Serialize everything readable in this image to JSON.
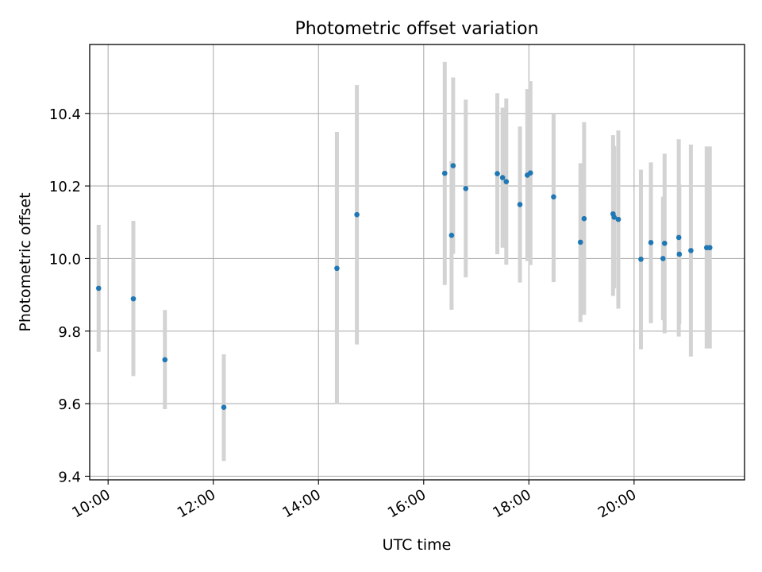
{
  "chart_data": {
    "type": "scatter",
    "title": "Photometric offset variation",
    "xlabel": "UTC time",
    "ylabel": "Photometric offset",
    "xlim": [
      9.65,
      22.1
    ],
    "ylim": [
      9.39,
      10.59
    ],
    "grid": true,
    "x_ticks": [
      {
        "value": 10,
        "label": "10:00"
      },
      {
        "value": 12,
        "label": "12:00"
      },
      {
        "value": 14,
        "label": "14:00"
      },
      {
        "value": 16,
        "label": "16:00"
      },
      {
        "value": 18,
        "label": "18:00"
      },
      {
        "value": 20,
        "label": "20:00"
      }
    ],
    "y_ticks": [
      {
        "value": 9.4,
        "label": "9.4"
      },
      {
        "value": 9.6,
        "label": "9.6"
      },
      {
        "value": 9.8,
        "label": "9.8"
      },
      {
        "value": 10.0,
        "label": "10.0"
      },
      {
        "value": 10.2,
        "label": "10.2"
      },
      {
        "value": 10.4,
        "label": "10.4"
      }
    ],
    "colors": {
      "point": "#1f77b4",
      "errorbar": "#d3d3d3",
      "grid": "#b0b0b0"
    },
    "points": [
      {
        "x": 9.82,
        "y": 9.918,
        "lo": 9.743,
        "hi": 10.093
      },
      {
        "x": 10.48,
        "y": 9.889,
        "lo": 9.676,
        "hi": 10.104
      },
      {
        "x": 11.08,
        "y": 9.721,
        "lo": 9.585,
        "hi": 9.858
      },
      {
        "x": 12.2,
        "y": 9.59,
        "lo": 9.442,
        "hi": 9.736
      },
      {
        "x": 14.35,
        "y": 9.973,
        "lo": 9.6,
        "hi": 10.349
      },
      {
        "x": 14.73,
        "y": 10.121,
        "lo": 9.763,
        "hi": 10.478
      },
      {
        "x": 16.4,
        "y": 10.235,
        "lo": 9.927,
        "hi": 10.542
      },
      {
        "x": 16.53,
        "y": 10.064,
        "lo": 9.859,
        "hi": 10.268
      },
      {
        "x": 16.56,
        "y": 10.256,
        "lo": 10.013,
        "hi": 10.499
      },
      {
        "x": 16.8,
        "y": 10.193,
        "lo": 9.948,
        "hi": 10.438
      },
      {
        "x": 17.4,
        "y": 10.234,
        "lo": 10.012,
        "hi": 10.456
      },
      {
        "x": 17.5,
        "y": 10.223,
        "lo": 10.03,
        "hi": 10.416
      },
      {
        "x": 17.57,
        "y": 10.212,
        "lo": 9.983,
        "hi": 10.441
      },
      {
        "x": 17.83,
        "y": 10.149,
        "lo": 9.934,
        "hi": 10.364
      },
      {
        "x": 17.97,
        "y": 10.23,
        "lo": 9.993,
        "hi": 10.467
      },
      {
        "x": 18.03,
        "y": 10.236,
        "lo": 9.982,
        "hi": 10.489
      },
      {
        "x": 18.47,
        "y": 10.17,
        "lo": 9.935,
        "hi": 10.4
      },
      {
        "x": 18.98,
        "y": 10.045,
        "lo": 9.825,
        "hi": 10.263
      },
      {
        "x": 19.05,
        "y": 10.11,
        "lo": 9.845,
        "hi": 10.376
      },
      {
        "x": 19.6,
        "y": 10.123,
        "lo": 9.897,
        "hi": 10.34
      },
      {
        "x": 19.62,
        "y": 10.114,
        "lo": 9.918,
        "hi": 10.31
      },
      {
        "x": 19.7,
        "y": 10.108,
        "lo": 9.862,
        "hi": 10.353
      },
      {
        "x": 20.13,
        "y": 9.998,
        "lo": 9.75,
        "hi": 10.245
      },
      {
        "x": 20.32,
        "y": 10.044,
        "lo": 9.822,
        "hi": 10.265
      },
      {
        "x": 20.55,
        "y": 10.0,
        "lo": 9.83,
        "hi": 10.17
      },
      {
        "x": 20.58,
        "y": 10.042,
        "lo": 9.794,
        "hi": 10.289
      },
      {
        "x": 20.85,
        "y": 10.058,
        "lo": 9.785,
        "hi": 10.329
      },
      {
        "x": 20.86,
        "y": 10.012,
        "lo": 9.82,
        "hi": 10.204
      },
      {
        "x": 21.08,
        "y": 10.022,
        "lo": 9.73,
        "hi": 10.314
      },
      {
        "x": 21.38,
        "y": 10.03,
        "lo": 9.752,
        "hi": 10.309
      },
      {
        "x": 21.44,
        "y": 10.03,
        "lo": 9.752,
        "hi": 10.309
      }
    ]
  }
}
